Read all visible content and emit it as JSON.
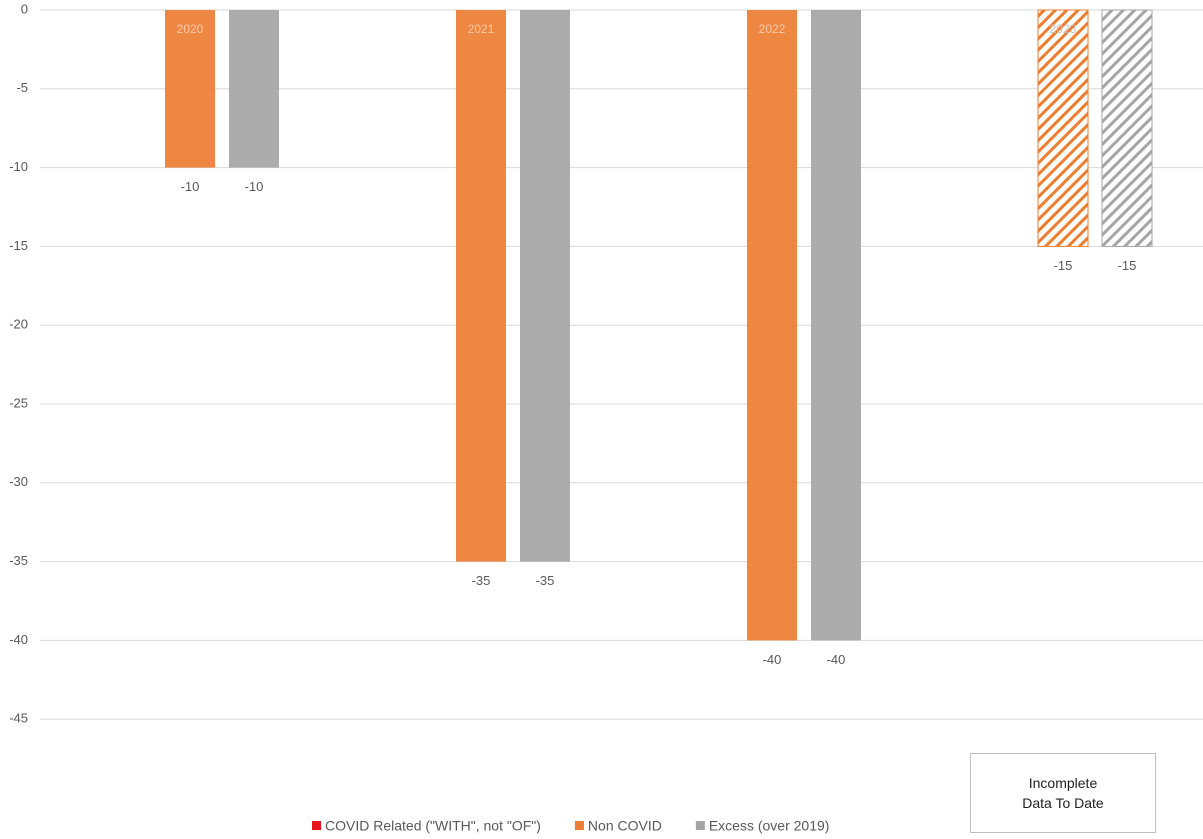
{
  "chart_data": {
    "type": "bar",
    "categories": [
      "2020",
      "2021",
      "2022",
      "2023"
    ],
    "pattern": [
      "solid",
      "solid",
      "solid",
      "hatched"
    ],
    "series": [
      {
        "name": "COVID Related (\"WITH\", not \"OF\")",
        "color": "#e8141b",
        "values": [
          null,
          null,
          null,
          null
        ]
      },
      {
        "name": "Non COVID",
        "color": "#ed7d31",
        "values": [
          -10,
          -35,
          -40,
          -15
        ]
      },
      {
        "name": "Excess (over 2019)",
        "color": "#a5a5a5",
        "values": [
          -10,
          -35,
          -40,
          -15
        ]
      }
    ],
    "ylim": [
      0,
      -50
    ],
    "yticks": [
      0,
      -5,
      -10,
      -15,
      -20,
      -25,
      -30,
      -35,
      -40,
      -45
    ],
    "grid": true,
    "legend": "bottom",
    "annotation": "Incomplete Data To Date"
  }
}
